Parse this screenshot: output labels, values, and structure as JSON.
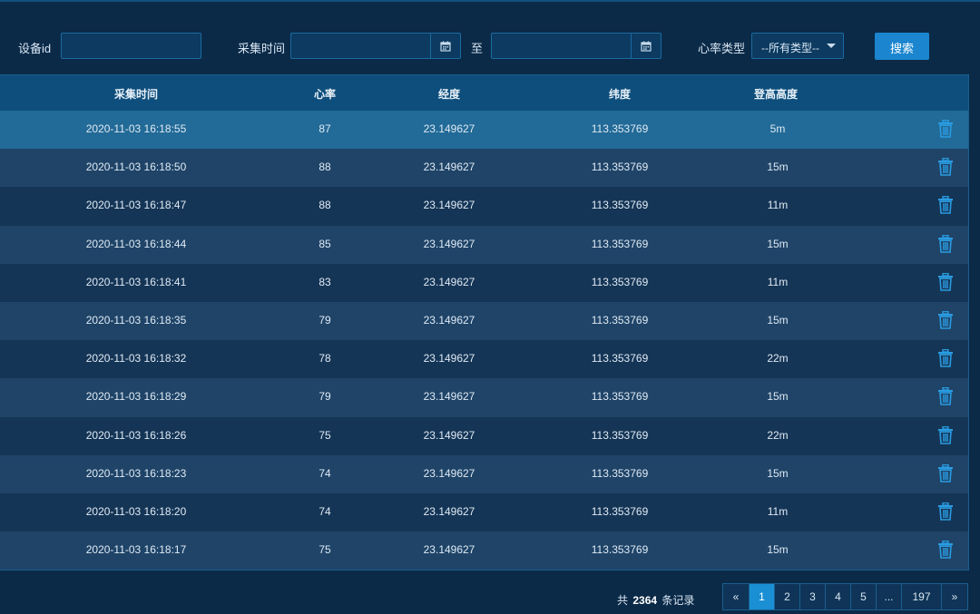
{
  "filter": {
    "device_label": "设备id",
    "device_value": "",
    "time_label": "采集时间",
    "start_value": "",
    "to_label": "至",
    "end_value": "",
    "hr_type_label": "心率类型",
    "hr_type_selected": "--所有类型--",
    "search_label": "搜索"
  },
  "table": {
    "headers": [
      "采集时间",
      "心率",
      "经度",
      "纬度",
      "登高高度"
    ],
    "rows": [
      {
        "time": "2020-11-03 16:18:55",
        "hr": "87",
        "lng": "23.149627",
        "lat": "113.353769",
        "alt": "5m"
      },
      {
        "time": "2020-11-03 16:18:50",
        "hr": "88",
        "lng": "23.149627",
        "lat": "113.353769",
        "alt": "15m"
      },
      {
        "time": "2020-11-03 16:18:47",
        "hr": "88",
        "lng": "23.149627",
        "lat": "113.353769",
        "alt": "11m"
      },
      {
        "time": "2020-11-03 16:18:44",
        "hr": "85",
        "lng": "23.149627",
        "lat": "113.353769",
        "alt": "15m"
      },
      {
        "time": "2020-11-03 16:18:41",
        "hr": "83",
        "lng": "23.149627",
        "lat": "113.353769",
        "alt": "11m"
      },
      {
        "time": "2020-11-03 16:18:35",
        "hr": "79",
        "lng": "23.149627",
        "lat": "113.353769",
        "alt": "15m"
      },
      {
        "time": "2020-11-03 16:18:32",
        "hr": "78",
        "lng": "23.149627",
        "lat": "113.353769",
        "alt": "22m"
      },
      {
        "time": "2020-11-03 16:18:29",
        "hr": "79",
        "lng": "23.149627",
        "lat": "113.353769",
        "alt": "15m"
      },
      {
        "time": "2020-11-03 16:18:26",
        "hr": "75",
        "lng": "23.149627",
        "lat": "113.353769",
        "alt": "22m"
      },
      {
        "time": "2020-11-03 16:18:23",
        "hr": "74",
        "lng": "23.149627",
        "lat": "113.353769",
        "alt": "15m"
      },
      {
        "time": "2020-11-03 16:18:20",
        "hr": "74",
        "lng": "23.149627",
        "lat": "113.353769",
        "alt": "11m"
      },
      {
        "time": "2020-11-03 16:18:17",
        "hr": "75",
        "lng": "23.149627",
        "lat": "113.353769",
        "alt": "15m"
      }
    ]
  },
  "footer": {
    "total_prefix": "共",
    "total_count": "2364",
    "total_suffix": "条记录",
    "pages": [
      "«",
      "1",
      "2",
      "3",
      "4",
      "5",
      "...",
      "197",
      "»"
    ],
    "active_page": "1"
  },
  "colors": {
    "background": "#0b2a48",
    "header": "#0e4e7c",
    "selected_row": "#226a97",
    "accent": "#1b86cf",
    "delete_icon": "#2a9be0"
  }
}
